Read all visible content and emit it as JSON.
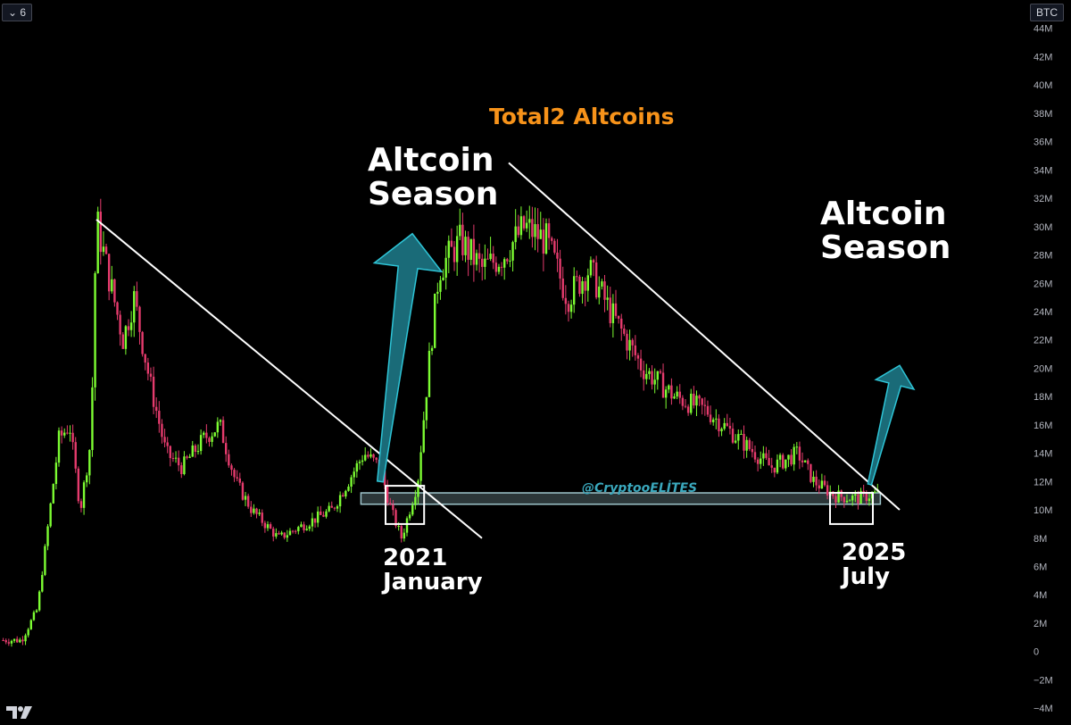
{
  "toolbar": {
    "interval_chevron": "⌄",
    "interval": "6",
    "currency": "BTC"
  },
  "brand": {
    "logo_icon": "tradingview-logo-icon",
    "text": "TV"
  },
  "chart_data": {
    "type": "candlestick",
    "title": "Total2 Altcoins",
    "watermark": "@CryptooELİTES",
    "y_axis": {
      "side": "right",
      "ticks": [
        -4000000,
        -2000000,
        0,
        2000000,
        4000000,
        6000000,
        8000000,
        10000000,
        12000000,
        14000000,
        16000000,
        18000000,
        20000000,
        22000000,
        24000000,
        26000000,
        28000000,
        30000000,
        32000000,
        34000000,
        36000000,
        38000000,
        40000000,
        42000000,
        44000000
      ],
      "tick_labels": [
        "−4M",
        "−2M",
        "0",
        "2M",
        "4M",
        "6M",
        "8M",
        "10M",
        "12M",
        "14M",
        "16M",
        "18M",
        "20M",
        "22M",
        "24M",
        "26M",
        "28M",
        "30M",
        "32M",
        "34M",
        "36M",
        "38M",
        "40M",
        "42M",
        "44M"
      ],
      "range": [
        -5000000,
        46000000
      ],
      "unit": "BTC"
    },
    "grid": false,
    "colors": {
      "up": "#7cfc32",
      "down": "#e53b6d",
      "annotation_arrow": "#1a6b78",
      "trendline": "#ffffff",
      "support_zone": "#9ec5cc",
      "title": "#f7931a"
    },
    "price_path": [
      [
        0,
        0.8
      ],
      [
        0.02,
        0.8
      ],
      [
        0.035,
        3
      ],
      [
        0.045,
        9
      ],
      [
        0.055,
        15
      ],
      [
        0.065,
        16
      ],
      [
        0.075,
        10
      ],
      [
        0.085,
        15
      ],
      [
        0.09,
        30.5
      ],
      [
        0.1,
        27
      ],
      [
        0.115,
        22
      ],
      [
        0.125,
        25
      ],
      [
        0.14,
        19
      ],
      [
        0.155,
        14
      ],
      [
        0.17,
        13
      ],
      [
        0.19,
        15
      ],
      [
        0.205,
        16
      ],
      [
        0.22,
        12
      ],
      [
        0.235,
        10
      ],
      [
        0.26,
        8
      ],
      [
        0.285,
        9
      ],
      [
        0.31,
        10
      ],
      [
        0.34,
        14
      ],
      [
        0.355,
        13
      ],
      [
        0.365,
        10
      ],
      [
        0.375,
        8
      ],
      [
        0.39,
        12
      ],
      [
        0.4,
        20
      ],
      [
        0.41,
        27
      ],
      [
        0.43,
        29
      ],
      [
        0.45,
        27
      ],
      [
        0.47,
        28
      ],
      [
        0.49,
        30
      ],
      [
        0.51,
        29
      ],
      [
        0.53,
        25
      ],
      [
        0.55,
        27
      ],
      [
        0.57,
        24
      ],
      [
        0.6,
        20
      ],
      [
        0.63,
        18
      ],
      [
        0.66,
        17
      ],
      [
        0.69,
        15
      ],
      [
        0.72,
        13
      ],
      [
        0.745,
        14
      ],
      [
        0.76,
        12
      ],
      [
        0.78,
        11
      ],
      [
        0.8,
        10.8
      ],
      [
        0.82,
        11.2
      ]
    ],
    "trendlines": [
      {
        "from": [
          0.09,
          30.5
        ],
        "to": [
          0.45,
          8
        ]
      },
      {
        "from": [
          0.475,
          34.5
        ],
        "to": [
          0.84,
          10
        ]
      }
    ],
    "support_zone": {
      "y_range": [
        10.4,
        11.2
      ],
      "x_range": [
        0.337,
        0.822
      ]
    },
    "highlight_boxes": [
      {
        "x_range": [
          0.36,
          0.396
        ],
        "y_range": [
          9,
          11.7
        ]
      },
      {
        "x_range": [
          0.775,
          0.815
        ],
        "y_range": [
          9,
          11.2
        ]
      }
    ],
    "arrows": [
      {
        "from": [
          0.355,
          12
        ],
        "to": [
          0.385,
          29.5
        ]
      },
      {
        "from": [
          0.812,
          11.8
        ],
        "to": [
          0.84,
          20.2
        ]
      }
    ],
    "annotations": [
      {
        "text_lines": [
          "Altcoin",
          "Season"
        ],
        "near": "first arrow"
      },
      {
        "text_lines": [
          "Altcoin",
          "Season"
        ],
        "near": "second arrow"
      },
      {
        "text_lines": [
          "2021",
          "January"
        ],
        "near": "first box"
      },
      {
        "text_lines": [
          "2025",
          "July"
        ],
        "near": "second box"
      }
    ]
  }
}
